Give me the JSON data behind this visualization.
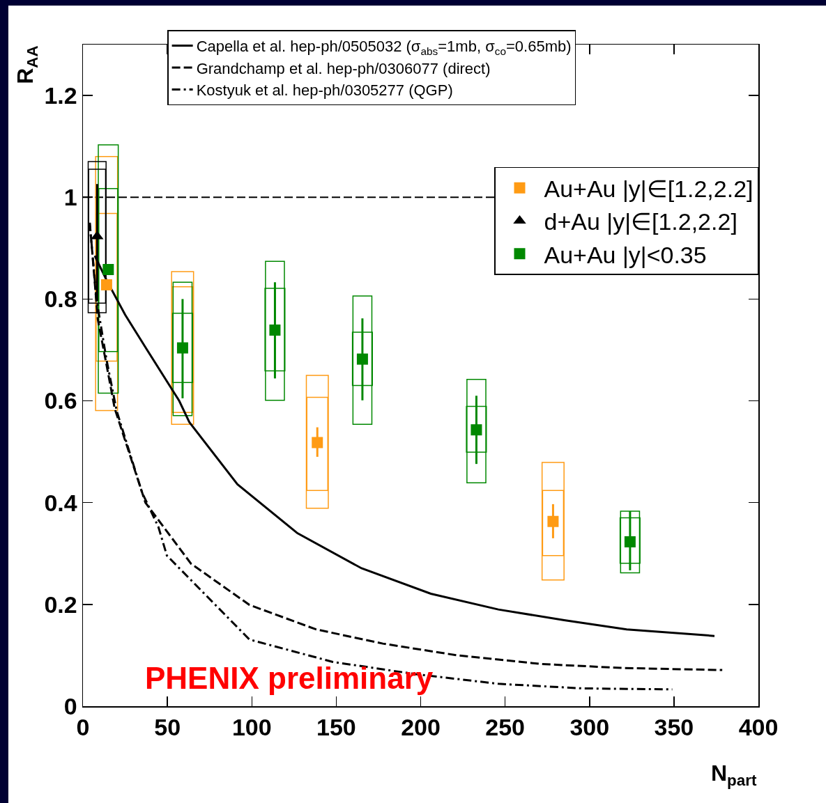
{
  "chart_data": {
    "type": "scatter",
    "xlabel": "N$_{part}$",
    "ylabel": "R$_{AA}$",
    "xlim": [
      0,
      400
    ],
    "xticks": [
      0,
      50,
      100,
      150,
      200,
      250,
      300,
      350,
      400
    ],
    "ylim": [
      0,
      1.3
    ],
    "yticks": [
      0,
      0.2,
      0.4,
      0.6,
      0.8,
      1,
      1.2
    ],
    "grid": false,
    "legend": "top right",
    "ref_lines": [
      {
        "axis": "y",
        "value": 1,
        "color": "#000000",
        "line_style": "dashed"
      }
    ],
    "annotations": [
      "PHENIX preliminary"
    ],
    "series": [
      {
        "type": "line",
        "name": "Capella et al. hep-ph/0505032 (σ$_{abs}$=1mb, σ$_{co}$=0.65mb)",
        "color": "#000000",
        "line_style": "solid",
        "marker": "none",
        "x": [
          7,
          14,
          25,
          38,
          57,
          63,
          91.5,
          127,
          165,
          206,
          246,
          285,
          322,
          374
        ],
        "values": [
          0.885,
          0.837,
          0.769,
          0.7,
          0.6,
          0.558,
          0.436,
          0.34,
          0.271,
          0.221,
          0.19,
          0.169,
          0.151,
          0.138
        ]
      },
      {
        "type": "line",
        "name": "Grandchamp et al. hep-ph/0306077 (direct)",
        "color": "#000000",
        "line_style": "dashed",
        "marker": "none",
        "x": [
          4,
          5.4,
          8.8,
          14,
          18.8,
          37,
          64,
          98.6,
          138,
          177.6,
          221.5,
          271,
          320,
          378.6
        ],
        "values": [
          0.95,
          0.896,
          0.76,
          0.67,
          0.585,
          0.4,
          0.28,
          0.199,
          0.151,
          0.123,
          0.1,
          0.083,
          0.075,
          0.071
        ]
      },
      {
        "type": "line",
        "name": "Kostyuk et al. hep-ph/0305277 (QGP)",
        "color": "#000000",
        "line_style": "dashdot",
        "marker": "none",
        "x": [
          4,
          8,
          14,
          20,
          35,
          44.7,
          49.7,
          98.6,
          148,
          197,
          246,
          295.5,
          349
        ],
        "values": [
          0.95,
          0.8,
          0.68,
          0.58,
          0.42,
          0.352,
          0.296,
          0.131,
          0.087,
          0.063,
          0.044,
          0.035,
          0.033
        ]
      },
      {
        "type": "bar",
        "color": "#ff9b14",
        "x": [
          14,
          59,
          138.8,
          278.4
        ],
        "base": [
          0.581,
          0.554,
          0.389,
          0.248
        ],
        "values": [
          0.499,
          0.3,
          0.261,
          0.231
        ]
      },
      {
        "type": "bar",
        "color": "#ff9b14",
        "x": [
          14,
          59,
          138.8,
          278.4
        ],
        "base": [
          0.678,
          0.577,
          0.424,
          0.296
        ],
        "values": [
          0.29,
          0.247,
          0.183,
          0.128
        ]
      },
      {
        "type": "bar",
        "color": "#008800",
        "x": [
          15,
          59,
          113.7,
          165.5,
          233,
          324
        ],
        "base": [
          0.615,
          0.636,
          0.659,
          0.63,
          0.499,
          0.281
        ],
        "values": [
          0.488,
          0.136,
          0.162,
          0.105,
          0.09,
          0.089
        ]
      },
      {
        "type": "bar",
        "color": "#008800",
        "x": [
          15,
          59,
          113.7,
          165.5,
          233,
          324
        ],
        "base": [
          0.697,
          0.571,
          0.601,
          0.554,
          0.439,
          0.262
        ],
        "values": [
          0.32,
          0.262,
          0.273,
          0.252,
          0.203,
          0.121
        ]
      },
      {
        "type": "bar",
        "color": "#000000",
        "x": [
          8.4
        ],
        "base": [
          0.773
        ],
        "values": [
          0.297
        ]
      },
      {
        "type": "bar",
        "color": "#000000",
        "x": [
          8.4
        ],
        "base": [
          0.792
        ],
        "values": [
          0.263
        ]
      },
      {
        "type": "scatter",
        "name": "Au+Au |y|∈[1.2,2.2]",
        "color": "#ff9b14",
        "marker": "square",
        "x": [
          14,
          59,
          138.8,
          278.4
        ],
        "values": [
          0.828,
          null,
          0.518,
          0.363
        ],
        "errors": [
          null,
          null,
          [
            0.49,
            0.548
          ],
          [
            0.33,
            0.397
          ]
        ]
      },
      {
        "type": "scatter",
        "name": "d+Au |y|∈[1.2,2.2]",
        "color": "#000000",
        "marker": "triangle",
        "x": [
          8.4
        ],
        "values": [
          0.923
        ],
        "errors": [
          [
            0.796,
            1.026
          ]
        ]
      },
      {
        "type": "scatter",
        "name": "Au+Au |y|<0.35",
        "color": "#008800",
        "marker": "square",
        "x": [
          15,
          59,
          113.7,
          165.5,
          233,
          324
        ],
        "values": [
          0.858,
          0.704,
          0.739,
          0.682,
          0.543,
          0.323
        ],
        "errors": [
          null,
          [
            0.605,
            0.8
          ],
          [
            0.644,
            0.833
          ],
          [
            0.601,
            0.762
          ],
          [
            0.476,
            0.61
          ],
          [
            0.267,
            0.383
          ]
        ]
      }
    ]
  }
}
